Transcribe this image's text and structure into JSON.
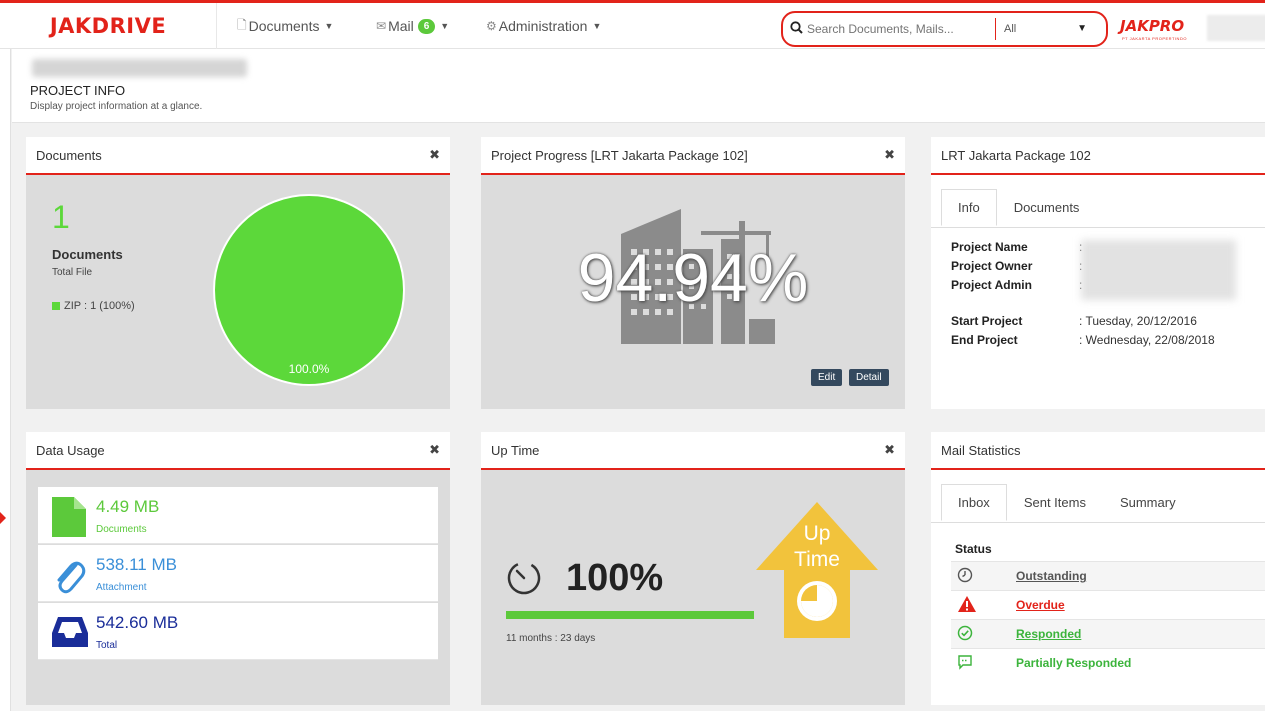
{
  "header": {
    "logo": "JAKDRIVE",
    "nav": [
      {
        "label": "Documents",
        "icon": "file-icon"
      },
      {
        "label": "Mail",
        "icon": "envelope-icon",
        "badge": "6"
      },
      {
        "label": "Administration",
        "icon": "gear-icon"
      }
    ],
    "search": {
      "placeholder": "Search Documents, Mails...",
      "scope": "All"
    },
    "brand": "JAKPRO",
    "brand_sub": "PT JAKARTA PROPERTINDO"
  },
  "page": {
    "title": "PROJECT INFO",
    "subtitle": "Display project information at a glance."
  },
  "documents_panel": {
    "title": "Documents",
    "count": "1",
    "label": "Documents",
    "sublabel": "Total File",
    "legend": "ZIP : 1 (100%)",
    "pie_label": "100.0%",
    "pie_fraction": 1.0,
    "color": "#5cd83a"
  },
  "progress_panel": {
    "title": "Project Progress [LRT Jakarta Package 102]",
    "value": "94.94%",
    "edit_label": "Edit",
    "detail_label": "Detail"
  },
  "info_panel": {
    "title": "LRT Jakarta Package 102",
    "tabs": [
      "Info",
      "Documents"
    ],
    "fields": [
      {
        "key": "Project Name",
        "value": ":"
      },
      {
        "key": "Project Owner",
        "value": ":"
      },
      {
        "key": "Project Admin",
        "value": ":"
      },
      {
        "key": "Start Project",
        "value": ": Tuesday, 20/12/2016"
      },
      {
        "key": "End Project",
        "value": ": Wednesday, 22/08/2018"
      }
    ]
  },
  "usage_panel": {
    "title": "Data Usage",
    "items": [
      {
        "value": "4.49 MB",
        "label": "Documents",
        "color": "#5cc93b"
      },
      {
        "value": "538.11 MB",
        "label": "Attachment",
        "color": "#3a8fd8"
      },
      {
        "value": "542.60 MB",
        "label": "Total",
        "color": "#1a2d99"
      }
    ]
  },
  "uptime_panel": {
    "title": "Up Time",
    "value": "100%",
    "duration": "11 months : 23 days",
    "fraction": 1.0,
    "badge_line1": "Up",
    "badge_line2": "Time"
  },
  "mail_panel": {
    "title": "Mail Statistics",
    "tabs": [
      "Inbox",
      "Sent Items",
      "Summary"
    ],
    "status_header": "Status",
    "statuses": [
      {
        "label": "Outstanding",
        "color": "#555555",
        "icon": "clock-icon"
      },
      {
        "label": "Overdue",
        "color": "#e2231a",
        "icon": "warning-icon"
      },
      {
        "label": "Responded",
        "color": "#3cb43c",
        "icon": "check-circle-icon"
      },
      {
        "label": "Partially Responded",
        "color": "#3cb43c",
        "icon": "comment-icon"
      }
    ]
  }
}
